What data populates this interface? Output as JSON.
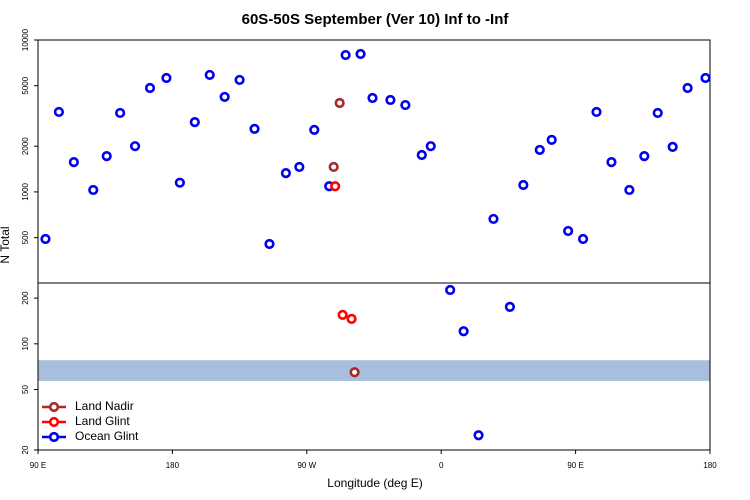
{
  "chart_data": {
    "type": "scatter",
    "title": "60S-50S September (Ver 10)   Inf to -Inf",
    "x_label": "Longitude (deg E)",
    "y_label": "N Total",
    "xlim": [
      90,
      540
    ],
    "xticks": [
      {
        "value": 90,
        "label": "90 E"
      },
      180,
      {
        "value": 270,
        "label": "90 W"
      },
      {
        "value": 360,
        "label": "0"
      },
      {
        "value": 450,
        "label": "90 E"
      },
      {
        "value": 540,
        "label": "180"
      }
    ],
    "ylim": [
      20,
      10000
    ],
    "log_y": true,
    "yticks": [
      20,
      50,
      100,
      200,
      500,
      1000,
      2000,
      5000,
      10000
    ],
    "shaded_band": {
      "range": [
        57,
        78
      ],
      "color": "#a8bedd"
    },
    "legend": "bottom-left",
    "series": [
      {
        "name": "Land Nadir",
        "color": "#a52a2a",
        "x": [
          292,
          288,
          302
        ],
        "values": [
          3850,
          1460,
          65
        ]
      },
      {
        "name": "Land Glint",
        "color": "#ff0000",
        "x": [
          289,
          294,
          300
        ],
        "values": [
          1090,
          155,
          146
        ]
      },
      {
        "name": "Ocean Glint",
        "color": "#0000ee",
        "x": [
          95,
          104,
          114,
          127,
          136,
          145,
          155,
          165,
          176,
          185,
          195,
          205,
          215,
          225,
          235,
          245,
          256,
          265,
          275,
          285,
          296,
          306,
          314,
          326,
          336,
          347,
          353,
          366,
          375,
          385,
          395,
          406,
          415,
          426,
          434,
          445,
          455,
          464,
          474,
          486,
          496,
          505,
          515,
          525,
          537
        ],
        "values": [
          490,
          3360,
          1570,
          1030,
          1720,
          3310,
          2000,
          4830,
          5620,
          1150,
          2880,
          5890,
          4220,
          5460,
          2600,
          454,
          1330,
          1460,
          2560,
          1090,
          7960,
          8090,
          4150,
          4030,
          3730,
          1750,
          2000,
          226,
          121,
          25,
          664,
          175,
          1110,
          1890,
          2200,
          553,
          490,
          3360,
          1570,
          1030,
          1720,
          3310,
          1980,
          4830,
          5620
        ]
      }
    ]
  }
}
